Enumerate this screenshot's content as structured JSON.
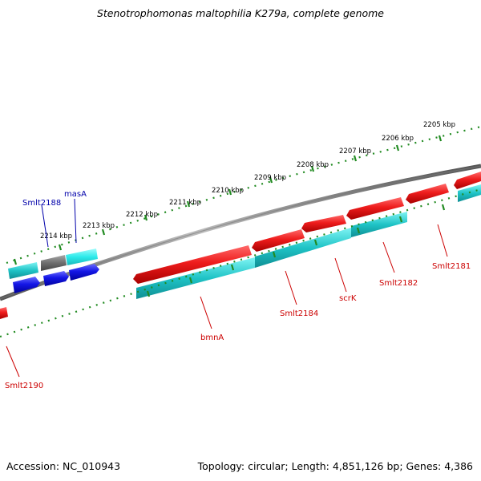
{
  "title": "Stenotrophomonas maltophilia K279a, complete genome",
  "footer": {
    "accession": "Accession: NC_010943",
    "summary": "Topology: circular; Length: 4,851,126 bp; Genes: 4,386"
  },
  "colors": {
    "backbone": "#808080",
    "ticks": "#228b22",
    "red": "#e8141a",
    "cyan": "#22c4c8",
    "cyan_light": "#2ce8ea",
    "blue": "#0e10e0",
    "gray_gene": "#707070",
    "red_label": "#cc0000",
    "blue_label": "#0000aa"
  },
  "kbp_labels": [
    "2205 kbp",
    "2206 kbp",
    "2207 kbp",
    "2208 kbp",
    "2209 kbp",
    "2210 kbp",
    "2211 kbp",
    "2212 kbp",
    "2213 kbp",
    "2214 kbp"
  ],
  "gene_labels": {
    "smlt2188": "Smlt2188",
    "masA": "masA",
    "smlt2181": "Smlt2181",
    "smlt2182": "Smlt2182",
    "scrK": "scrK",
    "smlt2184": "Smlt2184",
    "bmnA": "bmnA",
    "smlt2190": "Smlt2190"
  }
}
